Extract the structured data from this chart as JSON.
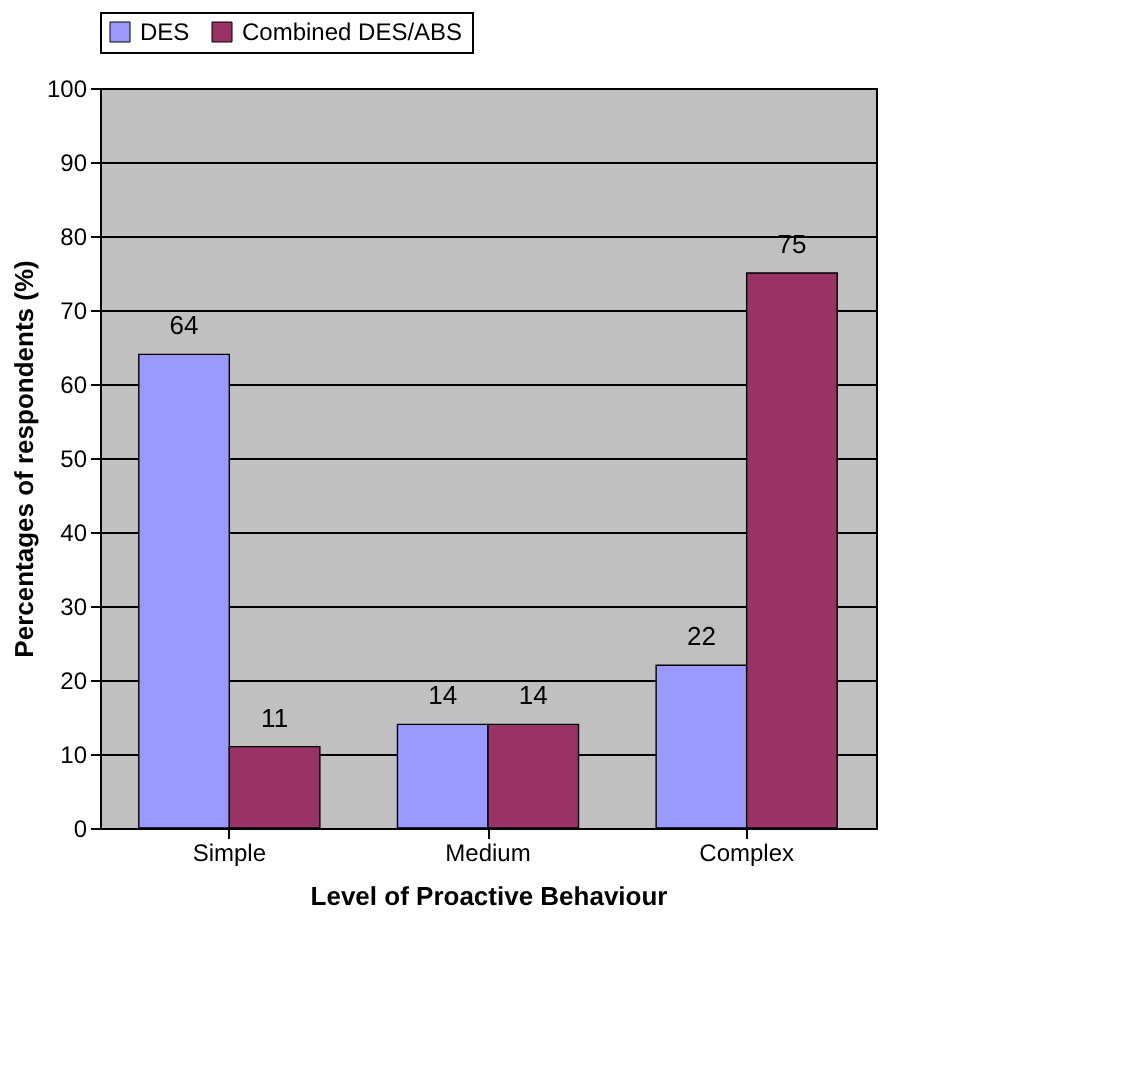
{
  "chart_data": {
    "type": "bar",
    "xlabel": "Level of Proactive Behaviour",
    "ylabel": "Percentages of respondents (%)",
    "categories": [
      "Simple",
      "Medium",
      "Complex"
    ],
    "series": [
      {
        "name": "DES",
        "color": "#9999ff",
        "values": [
          64,
          14,
          22
        ]
      },
      {
        "name": "Combined DES/ABS",
        "color": "#993366",
        "values": [
          11,
          14,
          75
        ]
      }
    ],
    "ylim": [
      0,
      100
    ],
    "yticks": [
      0,
      10,
      20,
      30,
      40,
      50,
      60,
      70,
      80,
      90,
      100
    ],
    "grid": "y",
    "legend": "top",
    "data_labels": true
  }
}
